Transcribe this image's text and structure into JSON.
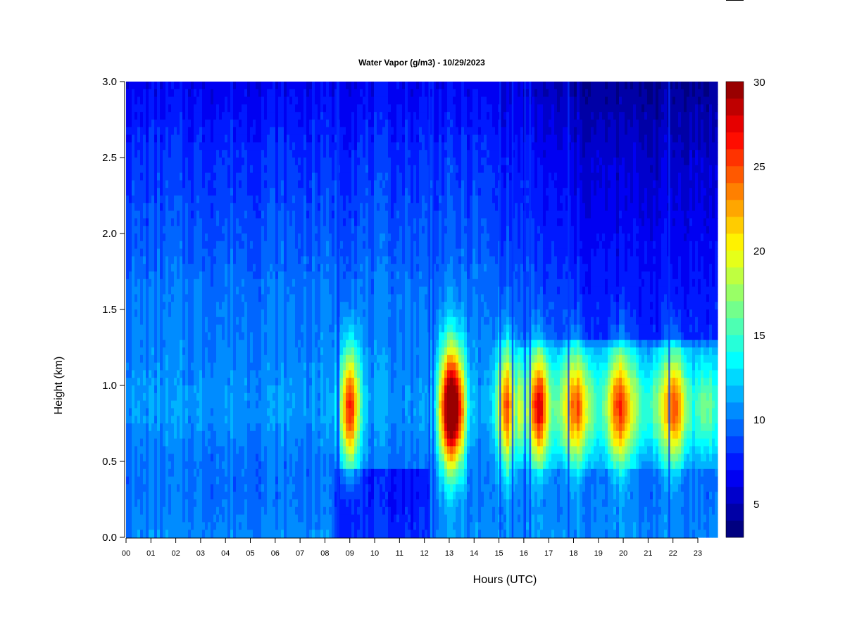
{
  "chart_data": {
    "type": "heatmap",
    "title": "Water Vapor (g/m3) - 10/29/2023",
    "xlabel": "Hours (UTC)",
    "ylabel": "Height (km)",
    "xlim": [
      0,
      24
    ],
    "ylim": [
      0,
      3.0
    ],
    "x_ticks": [
      "00",
      "01",
      "02",
      "03",
      "04",
      "05",
      "06",
      "07",
      "08",
      "09",
      "10",
      "11",
      "12",
      "13",
      "14",
      "15",
      "16",
      "17",
      "18",
      "19",
      "20",
      "21",
      "22",
      "23"
    ],
    "y_ticks": [
      "0.0",
      "0.5",
      "1.0",
      "1.5",
      "2.0",
      "2.5",
      "3.0"
    ],
    "colorbar": {
      "range": [
        3,
        30
      ],
      "levels": 27,
      "ticks": [
        5,
        10,
        15,
        20,
        25,
        30
      ],
      "colors": [
        "#000080",
        "#0000a6",
        "#0000cc",
        "#0000f2",
        "#0019ff",
        "#0040ff",
        "#0066ff",
        "#008cff",
        "#00b3ff",
        "#00d9ff",
        "#00ffff",
        "#26ffd9",
        "#4dffb3",
        "#73ff8c",
        "#99ff66",
        "#bfff40",
        "#e6ff19",
        "#fff200",
        "#ffcc00",
        "#ffa600",
        "#ff8000",
        "#ff5900",
        "#ff3300",
        "#ff0d00",
        "#e60000",
        "#bf0000",
        "#990000"
      ]
    },
    "height_profile": {
      "heights_km": [
        0.0,
        0.25,
        0.5,
        0.75,
        0.9,
        1.0,
        1.25,
        1.5,
        1.75,
        2.0,
        2.5,
        3.0
      ],
      "base_gpm3": [
        10.5,
        9.8,
        9.8,
        10.6,
        10.8,
        10.6,
        10.2,
        10.0,
        9.6,
        9.0,
        8.0,
        6.5
      ]
    },
    "moist_features": [
      {
        "hour": 9.0,
        "peak_gpm3": 27,
        "height_km": 0.85
      },
      {
        "hour": 12.9,
        "peak_gpm3": 25,
        "height_km": 0.85
      },
      {
        "hour": 13.3,
        "peak_gpm3": 26,
        "height_km": 0.85
      },
      {
        "hour": 15.3,
        "peak_gpm3": 25,
        "height_km": 0.85
      },
      {
        "hour": 16.6,
        "peak_gpm3": 22,
        "height_km": 0.85
      },
      {
        "hour": 18.1,
        "peak_gpm3": 21,
        "height_km": 0.85
      },
      {
        "hour": 19.9,
        "peak_gpm3": 22,
        "height_km": 0.85
      },
      {
        "hour": 22.0,
        "peak_gpm3": 21,
        "height_km": 0.85
      }
    ],
    "dry_streaks_hours": [
      8.5,
      8.55,
      12.2,
      12.35,
      15.05,
      15.55,
      16.05,
      16.25,
      17.8,
      21.85
    ],
    "grid": false,
    "legend": "colorbar-right"
  }
}
